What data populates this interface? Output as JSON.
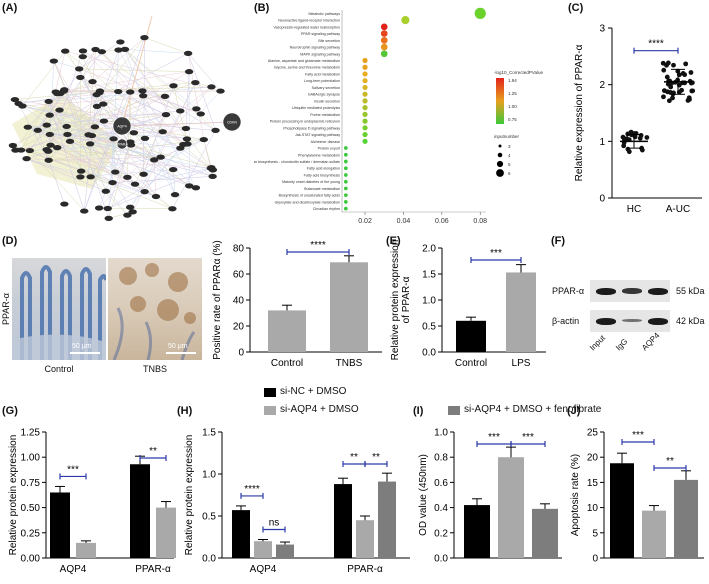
{
  "panel_labels": {
    "A": "(A)",
    "B": "(B)",
    "C": "(C)",
    "D": "(D)",
    "E": "(E)",
    "F": "(F)",
    "G": "(G)",
    "H": "(H)",
    "I": "(I)",
    "J": "(J)"
  },
  "legend_H": [
    "si-NC + DMSO",
    "si-AQP4 + DMSO",
    "si-AQP4 + DMSO + fenofibrate"
  ],
  "legend_H_colors": [
    "#000000",
    "#a9a9a9",
    "#7d7d7d"
  ],
  "panel_D": {
    "side_label": "PPAR-α",
    "images": [
      {
        "caption": "Control",
        "scale": "50 μm"
      },
      {
        "caption": "TNBS",
        "scale": "50 μm"
      }
    ]
  },
  "panel_F": {
    "rows": [
      {
        "name": "PPAR-α",
        "size": "55 kDa",
        "intensity": [
          1.0,
          0.8,
          1.0
        ]
      },
      {
        "name": "β-actin",
        "size": "42 kDa",
        "intensity": [
          1.0,
          0.35,
          1.0
        ]
      }
    ],
    "lanes": [
      "Input",
      "IgG",
      "AQP4"
    ]
  },
  "panel_B_legend": {
    "color_title": "-log10_CorrectedPValue",
    "color_ticks": [
      "1.94",
      "1.25",
      "1.00",
      "0.75"
    ],
    "size_title": "inputnumber",
    "size_ticks": [
      "3",
      "4",
      "5",
      "6"
    ]
  },
  "chart_data": [
    {
      "panel": "A",
      "type": "network",
      "hub_nodes": [
        "AQP4",
        "PPARA",
        "CDKN"
      ]
    },
    {
      "panel": "B",
      "type": "scatter",
      "x_ticks": [
        "0.02",
        "0.04",
        "0.06",
        "0.08"
      ],
      "xlim": [
        0.008,
        0.083
      ],
      "terms": [
        {
          "name": "Metabolic pathways",
          "x": 0.08,
          "size": 6,
          "color": "#6bd22c"
        },
        {
          "name": "Neuroactive ligand-receptor interaction",
          "x": 0.041,
          "size": 4,
          "color": "#a9cf2c"
        },
        {
          "name": "Vasopressin-regulated water reabsorption",
          "x": 0.03,
          "size": 3,
          "color": "#e2231b"
        },
        {
          "name": "PPAR signaling pathway",
          "x": 0.03,
          "size": 3,
          "color": "#e4441a"
        },
        {
          "name": "Bile secretion",
          "x": 0.03,
          "size": 3,
          "color": "#e8701c"
        },
        {
          "name": "Neurotrophin signaling pathway",
          "x": 0.03,
          "size": 3,
          "color": "#e89420"
        },
        {
          "name": "MAPK signaling pathway",
          "x": 0.03,
          "size": 3,
          "color": "#56c73a"
        },
        {
          "name": "Alanine, aspartate and glutamate metabolism",
          "x": 0.02,
          "size": 2,
          "color": "#e8a01f"
        },
        {
          "name": "Glycine, serine and threonine metabolism",
          "x": 0.02,
          "size": 2,
          "color": "#e8a01f"
        },
        {
          "name": "Fatty acid metabolism",
          "x": 0.02,
          "size": 2,
          "color": "#e8ac20"
        },
        {
          "name": "Long-term potentiation",
          "x": 0.02,
          "size": 2,
          "color": "#e2b022"
        },
        {
          "name": "Salivary secretion",
          "x": 0.02,
          "size": 2,
          "color": "#d8b424"
        },
        {
          "name": "GABAergic synapse",
          "x": 0.02,
          "size": 2,
          "color": "#c8b826"
        },
        {
          "name": "Insulin secretion",
          "x": 0.02,
          "size": 2,
          "color": "#b8bc28"
        },
        {
          "name": "Ubiquitin mediated proteolysis",
          "x": 0.02,
          "size": 2,
          "color": "#a8c02a"
        },
        {
          "name": "Purine metabolism",
          "x": 0.02,
          "size": 2,
          "color": "#98c42c"
        },
        {
          "name": "Protein processing in endoplasmic reticulum",
          "x": 0.02,
          "size": 2,
          "color": "#88c82e"
        },
        {
          "name": "Phospholipase D signaling pathway",
          "x": 0.02,
          "size": 2,
          "color": "#78cc30"
        },
        {
          "name": "Jak-STAT signaling pathway",
          "x": 0.02,
          "size": 2,
          "color": "#68d032"
        },
        {
          "name": "Alzheimer disease",
          "x": 0.02,
          "size": 2,
          "color": "#58d434"
        },
        {
          "name": "Protein export",
          "x": 0.01,
          "size": 1,
          "color": "#3cc83c"
        },
        {
          "name": "Phenylalanine metabolism",
          "x": 0.01,
          "size": 1,
          "color": "#3cc83c"
        },
        {
          "name": "Glycosaminoglycan biosynthesis - chondroitin sulfate / dermatan sulfate",
          "x": 0.01,
          "size": 1,
          "color": "#3cc83c"
        },
        {
          "name": "Fatty acid elongation",
          "x": 0.01,
          "size": 1,
          "color": "#3cc83c"
        },
        {
          "name": "Fatty acid biosynthesis",
          "x": 0.01,
          "size": 1,
          "color": "#3cc83c"
        },
        {
          "name": "Maturity onset diabetes of the young",
          "x": 0.01,
          "size": 1,
          "color": "#3cc83c"
        },
        {
          "name": "Butanoate metabolism",
          "x": 0.01,
          "size": 1,
          "color": "#3cc83c"
        },
        {
          "name": "Biosynthesis of unsaturated fatty acids",
          "x": 0.01,
          "size": 1,
          "color": "#3cc83c"
        },
        {
          "name": "Glyoxylate and dicarboxylate metabolism",
          "x": 0.01,
          "size": 1,
          "color": "#3cc83c"
        },
        {
          "name": "Circadian rhythm",
          "x": 0.01,
          "size": 1,
          "color": "#3cc83c"
        }
      ]
    },
    {
      "panel": "C",
      "type": "scatter",
      "ylabel": "Relative expression of PPAR-α",
      "categories": [
        "HC",
        "A-UC"
      ],
      "ylim": [
        0,
        3
      ],
      "yticks": [
        0,
        1,
        2,
        3
      ],
      "means": [
        1.0,
        2.05
      ],
      "sds": [
        0.12,
        0.22
      ],
      "n": [
        20,
        40
      ],
      "significance": "****"
    },
    {
      "panel": "D",
      "type": "bar",
      "ylabel": "Positive rate of PPARα (%)",
      "categories": [
        "Control",
        "TNBS"
      ],
      "values": [
        32,
        69
      ],
      "errors": [
        4,
        5
      ],
      "colors": [
        "#a9a9a9",
        "#a9a9a9"
      ],
      "ylim": [
        0,
        80
      ],
      "yticks": [
        0,
        20,
        40,
        60,
        80
      ],
      "significance": "****"
    },
    {
      "panel": "E",
      "type": "bar",
      "ylabel": "Relative protein expression of PPAR-α",
      "categories": [
        "Control",
        "LPS"
      ],
      "values": [
        0.6,
        1.53
      ],
      "errors": [
        0.07,
        0.15
      ],
      "colors": [
        "#000000",
        "#a9a9a9"
      ],
      "ylim": [
        0,
        2.0
      ],
      "yticks": [
        0.0,
        0.5,
        1.0,
        1.5,
        2.0
      ],
      "tick_decimals": 1,
      "significance": "***"
    },
    {
      "panel": "G",
      "type": "bar",
      "ylabel": "Relative protein expression",
      "categories": [
        "AQP4",
        "PPAR-α"
      ],
      "series": [
        {
          "name": "si-NC",
          "color": "#000000",
          "values": [
            0.65,
            0.93
          ],
          "errors": [
            0.06,
            0.08
          ]
        },
        {
          "name": "si-AQP4",
          "color": "#a9a9a9",
          "values": [
            0.15,
            0.5
          ],
          "errors": [
            0.02,
            0.06
          ]
        }
      ],
      "ylim": [
        0,
        1.25
      ],
      "yticks": [
        0.0,
        0.25,
        0.5,
        0.75,
        1.0,
        1.25
      ],
      "tick_decimals": 2,
      "significance": [
        {
          "a": [
            0,
            0
          ],
          "b": [
            0,
            1
          ],
          "label": "***"
        },
        {
          "a": [
            1,
            0
          ],
          "b": [
            1,
            1
          ],
          "label": "**"
        }
      ]
    },
    {
      "panel": "H",
      "type": "bar",
      "ylabel": "Relative protein expression",
      "categories": [
        "AQP4",
        "PPAR-α"
      ],
      "series": [
        {
          "name": "si-NC + DMSO",
          "color": "#000000",
          "values": [
            0.57,
            0.88
          ],
          "errors": [
            0.05,
            0.07
          ]
        },
        {
          "name": "si-AQP4 + DMSO",
          "color": "#a9a9a9",
          "values": [
            0.2,
            0.45
          ],
          "errors": [
            0.02,
            0.05
          ]
        },
        {
          "name": "si-AQP4 + DMSO + fenofibrate",
          "color": "#7d7d7d",
          "values": [
            0.16,
            0.91
          ],
          "errors": [
            0.03,
            0.1
          ]
        }
      ],
      "ylim": [
        0,
        1.5
      ],
      "yticks": [
        0.0,
        0.5,
        1.0,
        1.5
      ],
      "tick_decimals": 1,
      "significance": [
        {
          "a": [
            0,
            0
          ],
          "b": [
            0,
            1
          ],
          "label": "****"
        },
        {
          "a": [
            0,
            1
          ],
          "b": [
            0,
            2
          ],
          "label": "ns"
        },
        {
          "a": [
            1,
            0
          ],
          "b": [
            1,
            1
          ],
          "label": "**"
        },
        {
          "a": [
            1,
            1
          ],
          "b": [
            1,
            2
          ],
          "label": "**"
        }
      ]
    },
    {
      "panel": "I",
      "type": "bar",
      "ylabel": "OD value (450nm)",
      "categories": [
        ""
      ],
      "series": [
        {
          "name": "si-NC + DMSO",
          "color": "#000000",
          "values": [
            0.42
          ],
          "errors": [
            0.05
          ]
        },
        {
          "name": "si-AQP4 + DMSO",
          "color": "#a9a9a9",
          "values": [
            0.8
          ],
          "errors": [
            0.08
          ]
        },
        {
          "name": "si-AQP4 + DMSO + fenofibrate",
          "color": "#7d7d7d",
          "values": [
            0.39
          ],
          "errors": [
            0.04
          ]
        }
      ],
      "ylim": [
        0,
        1.0
      ],
      "yticks": [
        0.0,
        0.2,
        0.4,
        0.6,
        0.8,
        1.0
      ],
      "tick_decimals": 1,
      "significance": [
        {
          "a": [
            0,
            0
          ],
          "b": [
            0,
            1
          ],
          "label": "***"
        },
        {
          "a": [
            0,
            1
          ],
          "b": [
            0,
            2
          ],
          "label": "***"
        }
      ]
    },
    {
      "panel": "J",
      "type": "bar",
      "ylabel": "Apoptosis rate (%)",
      "categories": [
        ""
      ],
      "series": [
        {
          "name": "si-NC + DMSO",
          "color": "#000000",
          "values": [
            18.8
          ],
          "errors": [
            2.0
          ]
        },
        {
          "name": "si-AQP4 + DMSO",
          "color": "#a9a9a9",
          "values": [
            9.4
          ],
          "errors": [
            1.0
          ]
        },
        {
          "name": "si-AQP4 + DMSO + fenofibrate",
          "color": "#7d7d7d",
          "values": [
            15.5
          ],
          "errors": [
            1.8
          ]
        }
      ],
      "ylim": [
        0,
        25
      ],
      "yticks": [
        0,
        5,
        10,
        15,
        20,
        25
      ],
      "significance": [
        {
          "a": [
            0,
            0
          ],
          "b": [
            0,
            1
          ],
          "label": "***"
        },
        {
          "a": [
            0,
            1
          ],
          "b": [
            0,
            2
          ],
          "label": "**"
        }
      ]
    }
  ]
}
